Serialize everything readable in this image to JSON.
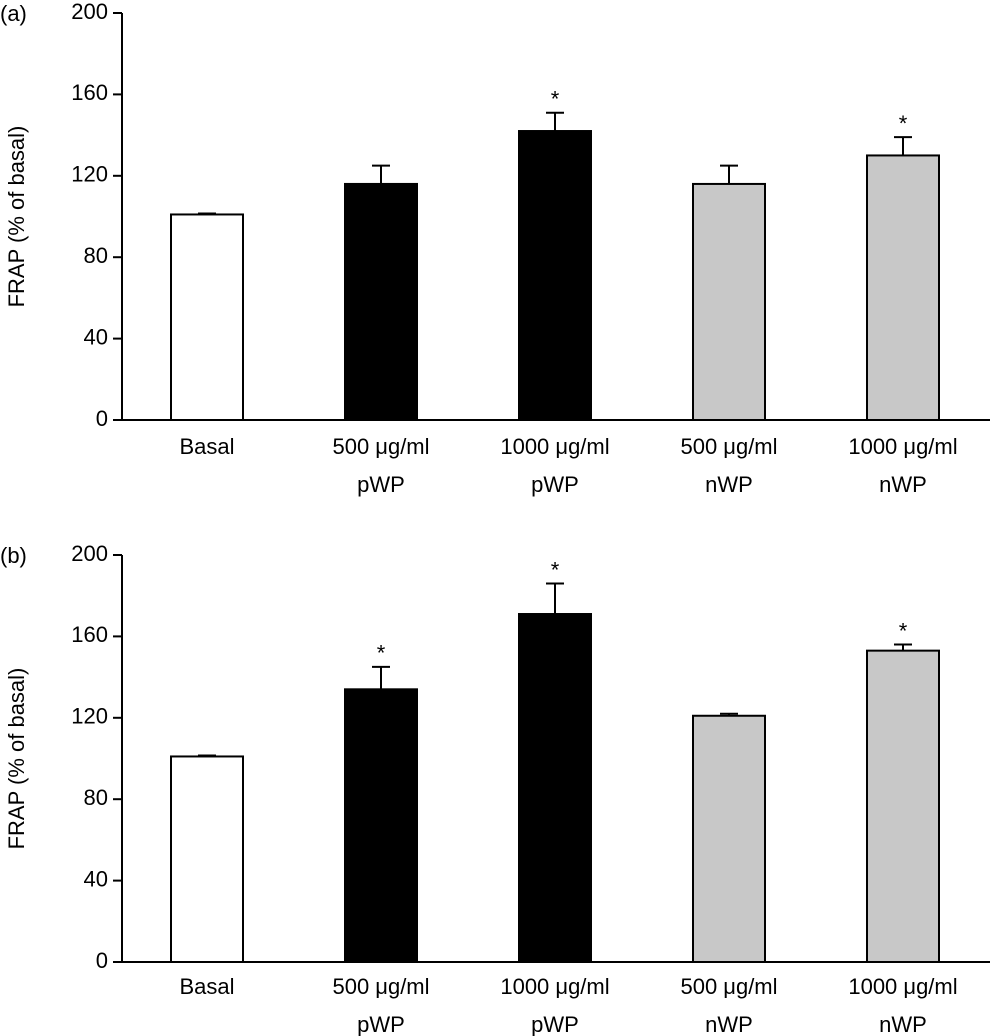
{
  "chart_data": [
    {
      "type": "bar",
      "panel_label": "(a)",
      "ylabel": "FRAP (% of basal)",
      "categories": [
        [
          "Basal"
        ],
        [
          "500 μg/ml",
          "pWP"
        ],
        [
          "1000 μg/ml",
          "pWP"
        ],
        [
          "500 μg/ml",
          "nWP"
        ],
        [
          "1000 μg/ml",
          "nWP"
        ]
      ],
      "values": [
        101,
        116,
        142,
        116,
        130
      ],
      "errors": [
        0.5,
        9,
        9,
        9,
        9
      ],
      "annotations": [
        null,
        null,
        "*",
        null,
        "*"
      ],
      "colors": [
        "#ffffff",
        "#000000",
        "#000000",
        "#c8c8c8",
        "#c8c8c8"
      ],
      "ylim": [
        0,
        200
      ],
      "yticks": [
        0,
        40,
        80,
        120,
        160,
        200
      ]
    },
    {
      "type": "bar",
      "panel_label": "(b)",
      "ylabel": "FRAP (% of basal)",
      "categories": [
        [
          "Basal"
        ],
        [
          "500 μg/ml",
          "pWP"
        ],
        [
          "1000 μg/ml",
          "pWP"
        ],
        [
          "500 μg/ml",
          "nWP"
        ],
        [
          "1000 μg/ml",
          "nWP"
        ]
      ],
      "values": [
        101,
        134,
        171,
        121,
        153
      ],
      "errors": [
        0.5,
        11,
        15,
        1,
        3
      ],
      "annotations": [
        null,
        "*",
        "*",
        null,
        "*"
      ],
      "colors": [
        "#ffffff",
        "#000000",
        "#000000",
        "#c8c8c8",
        "#c8c8c8"
      ],
      "ylim": [
        0,
        200
      ],
      "yticks": [
        0,
        40,
        80,
        120,
        160,
        200
      ]
    }
  ]
}
